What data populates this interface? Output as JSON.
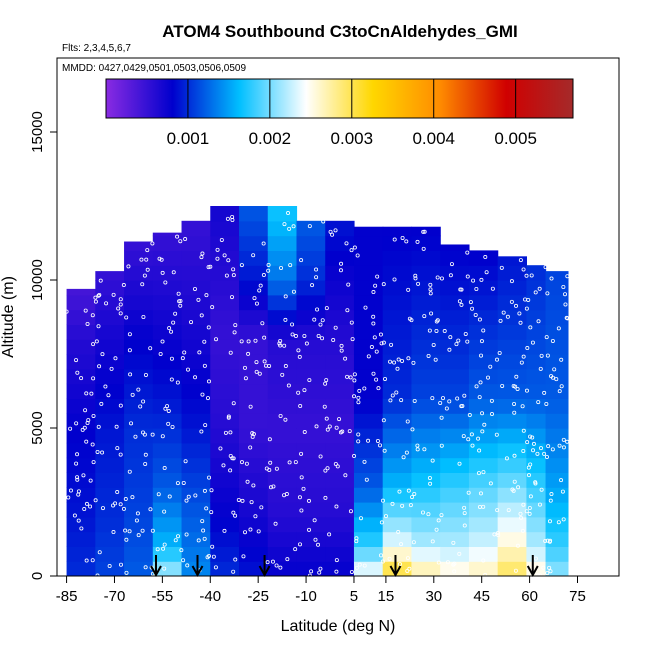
{
  "chart_data": {
    "type": "heatmap",
    "title": "ATOM4 Southbound C3toCnAldehydes_GMI",
    "subtitle_flights": "Flts: 2,3,4,5,6,7",
    "subtitle_dates": "MMDD: 0427,0429,0501,0503,0506,0509",
    "xlabel": "Latitude (deg N)",
    "ylabel": "Altitude (m)",
    "xlim": [
      -88,
      88
    ],
    "ylim": [
      0,
      17500
    ],
    "xticks": [
      -85,
      -70,
      -55,
      -40,
      -25,
      -10,
      5,
      15,
      30,
      45,
      60,
      75
    ],
    "xtick_labels": [
      "-85",
      "-70",
      "-55",
      "-40",
      "-25",
      "-10",
      "5",
      "15",
      "30",
      "45",
      "60",
      "75"
    ],
    "yticks": [
      0,
      5000,
      10000,
      15000
    ],
    "ytick_labels": [
      "0",
      "5000",
      "10000",
      "15000"
    ],
    "colorbar": {
      "range": [
        0.0,
        0.0057
      ],
      "ticks": [
        0.001,
        0.002,
        0.003,
        0.004,
        0.005
      ],
      "tick_labels": [
        "0.001",
        "0.002",
        "0.003",
        "0.004",
        "0.005"
      ],
      "colors": [
        "#8a2be2",
        "#0000cd",
        "#00bfff",
        "#ffffff",
        "#ffd700",
        "#ff8c00",
        "#d00000",
        "#a52a2a"
      ]
    },
    "profile_markers_lat": [
      -57,
      -44,
      -23,
      18,
      61
    ],
    "columns": [
      {
        "lat": [
          -85,
          -76
        ],
        "top": 9700,
        "profile": [
          [
            0,
            0.001
          ],
          [
            2000,
            0.0009
          ],
          [
            5000,
            0.0008
          ],
          [
            8000,
            0.0006
          ],
          [
            9700,
            0.0004
          ]
        ]
      },
      {
        "lat": [
          -76,
          -67
        ],
        "top": 10300,
        "profile": [
          [
            0,
            0.0011
          ],
          [
            2000,
            0.001
          ],
          [
            5000,
            0.0009
          ],
          [
            8000,
            0.0007
          ],
          [
            10300,
            0.0005
          ]
        ]
      },
      {
        "lat": [
          -67,
          -58
        ],
        "top": 11300,
        "profile": [
          [
            0,
            0.0012
          ],
          [
            2000,
            0.0011
          ],
          [
            5000,
            0.001
          ],
          [
            8000,
            0.0008
          ],
          [
            11300,
            0.0005
          ]
        ]
      },
      {
        "lat": [
          -58,
          -49
        ],
        "top": 11600,
        "profile": [
          [
            0,
            0.0022
          ],
          [
            1000,
            0.0016
          ],
          [
            3000,
            0.0012
          ],
          [
            6000,
            0.0009
          ],
          [
            11600,
            0.0005
          ]
        ]
      },
      {
        "lat": [
          -49,
          -40
        ],
        "top": 12000,
        "profile": [
          [
            0,
            0.0014
          ],
          [
            2000,
            0.0012
          ],
          [
            5000,
            0.0009
          ],
          [
            8000,
            0.0007
          ],
          [
            12000,
            0.0005
          ]
        ]
      },
      {
        "lat": [
          -40,
          -31
        ],
        "top": 12500,
        "profile": [
          [
            0,
            0.001
          ],
          [
            2000,
            0.0008
          ],
          [
            5000,
            0.0006
          ],
          [
            8000,
            0.0005
          ],
          [
            12500,
            0.0007
          ]
        ]
      },
      {
        "lat": [
          -31,
          -22
        ],
        "top": 12500,
        "profile": [
          [
            0,
            0.0009
          ],
          [
            2000,
            0.0007
          ],
          [
            5000,
            0.0005
          ],
          [
            8000,
            0.0005
          ],
          [
            10000,
            0.0009
          ],
          [
            12500,
            0.0012
          ]
        ]
      },
      {
        "lat": [
          -22,
          -13
        ],
        "top": 12500,
        "profile": [
          [
            0,
            0.0008
          ],
          [
            2000,
            0.0006
          ],
          [
            5000,
            0.0005
          ],
          [
            8000,
            0.0006
          ],
          [
            10000,
            0.0013
          ],
          [
            12500,
            0.0017
          ]
        ]
      },
      {
        "lat": [
          -13,
          -4
        ],
        "top": 12000,
        "profile": [
          [
            0,
            0.0008
          ],
          [
            2000,
            0.0006
          ],
          [
            5000,
            0.0005
          ],
          [
            8000,
            0.0006
          ],
          [
            10000,
            0.001
          ],
          [
            12000,
            0.0012
          ]
        ]
      },
      {
        "lat": [
          -4,
          5
        ],
        "top": 12000,
        "profile": [
          [
            0,
            0.0008
          ],
          [
            2000,
            0.0006
          ],
          [
            5000,
            0.0005
          ],
          [
            8000,
            0.0006
          ],
          [
            12000,
            0.0009
          ]
        ]
      },
      {
        "lat": [
          5,
          14
        ],
        "top": 11800,
        "profile": [
          [
            0,
            0.0025
          ],
          [
            1000,
            0.0018
          ],
          [
            3000,
            0.0012
          ],
          [
            6000,
            0.0008
          ],
          [
            11800,
            0.0008
          ]
        ]
      },
      {
        "lat": [
          14,
          23
        ],
        "top": 11800,
        "profile": [
          [
            0,
            0.0032
          ],
          [
            1000,
            0.0024
          ],
          [
            3000,
            0.0016
          ],
          [
            6000,
            0.001
          ],
          [
            11800,
            0.0008
          ]
        ]
      },
      {
        "lat": [
          23,
          32
        ],
        "top": 11800,
        "profile": [
          [
            0,
            0.0028
          ],
          [
            1000,
            0.0022
          ],
          [
            3000,
            0.0017
          ],
          [
            6000,
            0.0011
          ],
          [
            11800,
            0.0008
          ]
        ]
      },
      {
        "lat": [
          32,
          41
        ],
        "top": 11200,
        "profile": [
          [
            0,
            0.0026
          ],
          [
            1000,
            0.0022
          ],
          [
            3000,
            0.0018
          ],
          [
            6000,
            0.0011
          ],
          [
            11200,
            0.0008
          ]
        ]
      },
      {
        "lat": [
          41,
          50
        ],
        "top": 11000,
        "profile": [
          [
            0,
            0.0027
          ],
          [
            1000,
            0.0023
          ],
          [
            3000,
            0.0019
          ],
          [
            6000,
            0.0012
          ],
          [
            11000,
            0.0008
          ]
        ]
      },
      {
        "lat": [
          50,
          59
        ],
        "top": 10800,
        "profile": [
          [
            0,
            0.003
          ],
          [
            1000,
            0.0026
          ],
          [
            3000,
            0.002
          ],
          [
            6000,
            0.0012
          ],
          [
            10800,
            0.0009
          ]
        ]
      },
      {
        "lat": [
          59,
          65
        ],
        "top": 10500,
        "profile": [
          [
            0,
            0.0026
          ],
          [
            1000,
            0.0022
          ],
          [
            3000,
            0.0018
          ],
          [
            6000,
            0.0012
          ],
          [
            10500,
            0.001
          ]
        ]
      },
      {
        "lat": [
          65,
          72
        ],
        "top": 10300,
        "profile": [
          [
            0,
            0.0021
          ],
          [
            1000,
            0.0018
          ],
          [
            3000,
            0.0015
          ],
          [
            6000,
            0.0012
          ],
          [
            10300,
            0.0011
          ]
        ]
      }
    ]
  }
}
